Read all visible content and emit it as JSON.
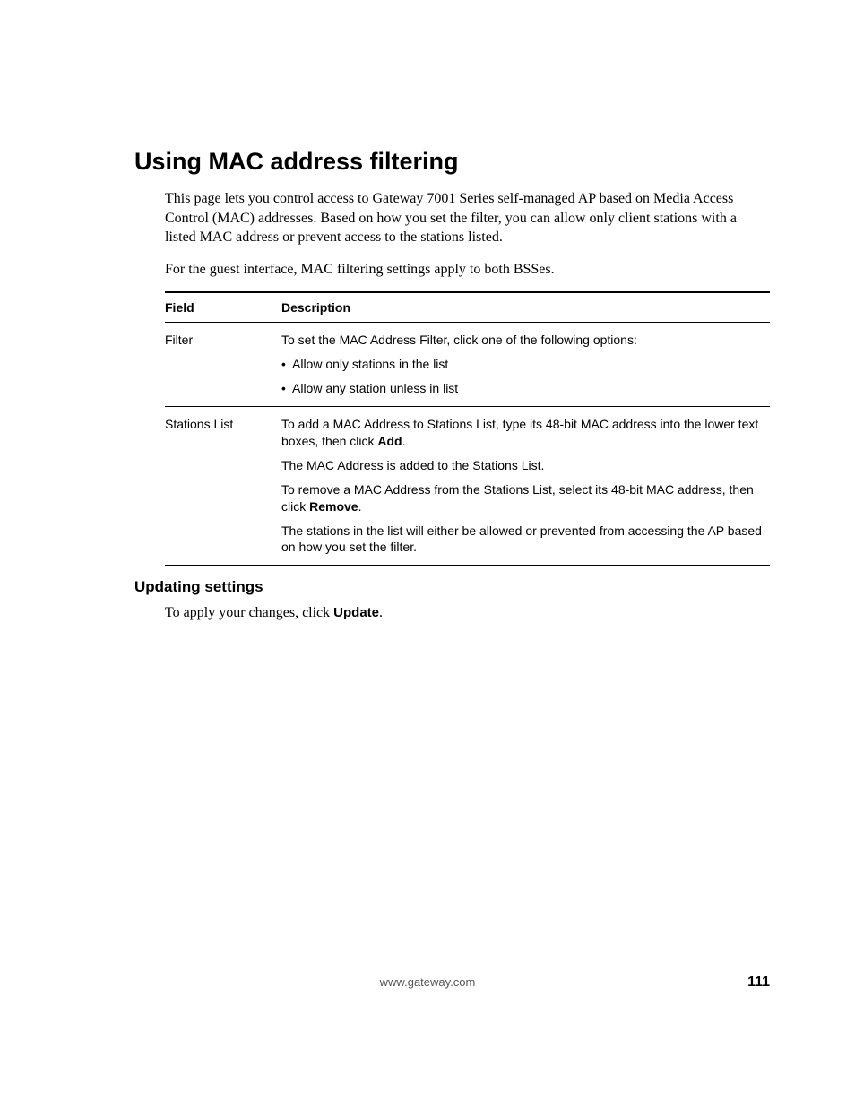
{
  "heading": "Using MAC address filtering",
  "intro_para_1": "This page lets you control access to Gateway 7001 Series self-managed AP based on Media Access Control (MAC) addresses. Based on how you set the filter, you can allow only client stations with a listed MAC address or prevent access to the stations listed.",
  "intro_para_2": "For the guest interface, MAC filtering settings apply to both BSSes.",
  "table": {
    "header_field": "Field",
    "header_desc": "Description",
    "rows": [
      {
        "field": "Filter",
        "lines": [
          {
            "text_pre": "To set the MAC Address Filter, click one of the following options:",
            "bold": "",
            "text_post": ""
          },
          {
            "bullet": true,
            "text_pre": "Allow only stations in the list",
            "bold": "",
            "text_post": ""
          },
          {
            "bullet": true,
            "text_pre": "Allow any station unless in list",
            "bold": "",
            "text_post": ""
          }
        ]
      },
      {
        "field": "Stations List",
        "lines": [
          {
            "text_pre": "To add a MAC Address to Stations List, type its 48-bit MAC address into the lower text boxes, then click ",
            "bold": "Add",
            "text_post": "."
          },
          {
            "text_pre": "The MAC Address is added to the Stations List.",
            "bold": "",
            "text_post": ""
          },
          {
            "text_pre": "To remove a MAC Address from the Stations List, select its 48-bit MAC address, then click ",
            "bold": "Remove",
            "text_post": "."
          },
          {
            "text_pre": "The stations in the list will either be allowed or prevented from accessing the AP based on how you set the filter.",
            "bold": "",
            "text_post": ""
          }
        ]
      }
    ]
  },
  "subheading": "Updating settings",
  "update_para_pre": "To apply your changes, click ",
  "update_para_bold": "Update",
  "update_para_post": ".",
  "footer_url": "www.gateway.com",
  "page_number": "111"
}
